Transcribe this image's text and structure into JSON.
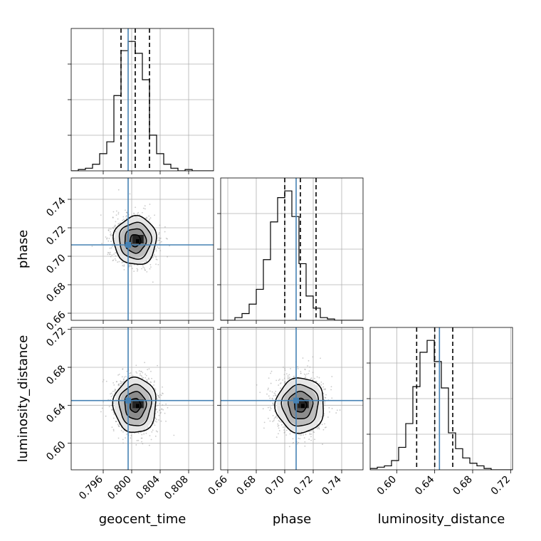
{
  "chart_data": {
    "type": "corner",
    "parameters": [
      {
        "id": "geocent_time",
        "label": "geocent_time",
        "range": [
          0.7915,
          0.8115
        ],
        "ticks": [
          0.796,
          0.8,
          0.804,
          0.808
        ],
        "tick_labels": [
          "0.796",
          "0.800",
          "0.804",
          "0.808"
        ],
        "truth": 0.7995,
        "median": 0.8005,
        "q16": 0.7985,
        "q84": 0.8025
      },
      {
        "id": "phase",
        "label": "phase",
        "range": [
          0.655,
          0.755
        ],
        "ticks": [
          0.66,
          0.68,
          0.7,
          0.72,
          0.74
        ],
        "tick_labels": [
          "0.66",
          "0.68",
          "0.70",
          "0.72",
          "0.74"
        ],
        "truth": 0.708,
        "median": 0.711,
        "q16": 0.7,
        "q84": 0.722
      },
      {
        "id": "luminosity_distance",
        "label": "luminosity_distance",
        "range": [
          0.572,
          0.722
        ],
        "ticks": [
          0.6,
          0.64,
          0.68,
          0.72
        ],
        "tick_labels": [
          "0.60",
          "0.64",
          "0.68",
          "0.72"
        ],
        "truth": 0.645,
        "median": 0.64,
        "q16": 0.621,
        "q84": 0.659
      }
    ],
    "histograms": [
      {
        "param": "geocent_time",
        "bin_start": 0.7915,
        "bin_width": 0.001,
        "counts": [
          0,
          1,
          2,
          5,
          13,
          22,
          57,
          91,
          98,
          89,
          69,
          27,
          13,
          5,
          2,
          0,
          1,
          0,
          0,
          0
        ]
      },
      {
        "param": "phase",
        "bin_start": 0.655,
        "bin_width": 0.005,
        "counts": [
          0,
          0,
          2,
          5,
          12,
          23,
          45,
          73,
          91,
          96,
          77,
          42,
          18,
          9,
          2,
          1,
          0,
          0,
          0,
          0
        ]
      },
      {
        "param": "luminosity_distance",
        "bin_start": 0.572,
        "bin_width": 0.0075,
        "counts": [
          1,
          2,
          3,
          7,
          17,
          35,
          63,
          89,
          98,
          82,
          62,
          28,
          16,
          9,
          5,
          3,
          1,
          0,
          0,
          0
        ]
      }
    ],
    "pairs": [
      {
        "x": "geocent_time",
        "y": "phase",
        "center": [
          0.8005,
          0.711
        ],
        "sigma": [
          0.0015,
          0.0085
        ],
        "truth": [
          0.7995,
          0.708
        ]
      },
      {
        "x": "geocent_time",
        "y": "luminosity_distance",
        "center": [
          0.8005,
          0.64
        ],
        "sigma": [
          0.0015,
          0.0145
        ],
        "truth": [
          0.7995,
          0.645
        ]
      },
      {
        "x": "phase",
        "y": "luminosity_distance",
        "center": [
          0.711,
          0.64
        ],
        "sigma": [
          0.0085,
          0.0145
        ],
        "truth": [
          0.708,
          0.645
        ]
      }
    ],
    "contour_levels_sigma": [
      0.5,
      1.0,
      1.5,
      2.0
    ],
    "grid": true,
    "colors": {
      "truth": "#4682b4",
      "hist": "#000000",
      "scatter": "#9e9e9e"
    }
  }
}
